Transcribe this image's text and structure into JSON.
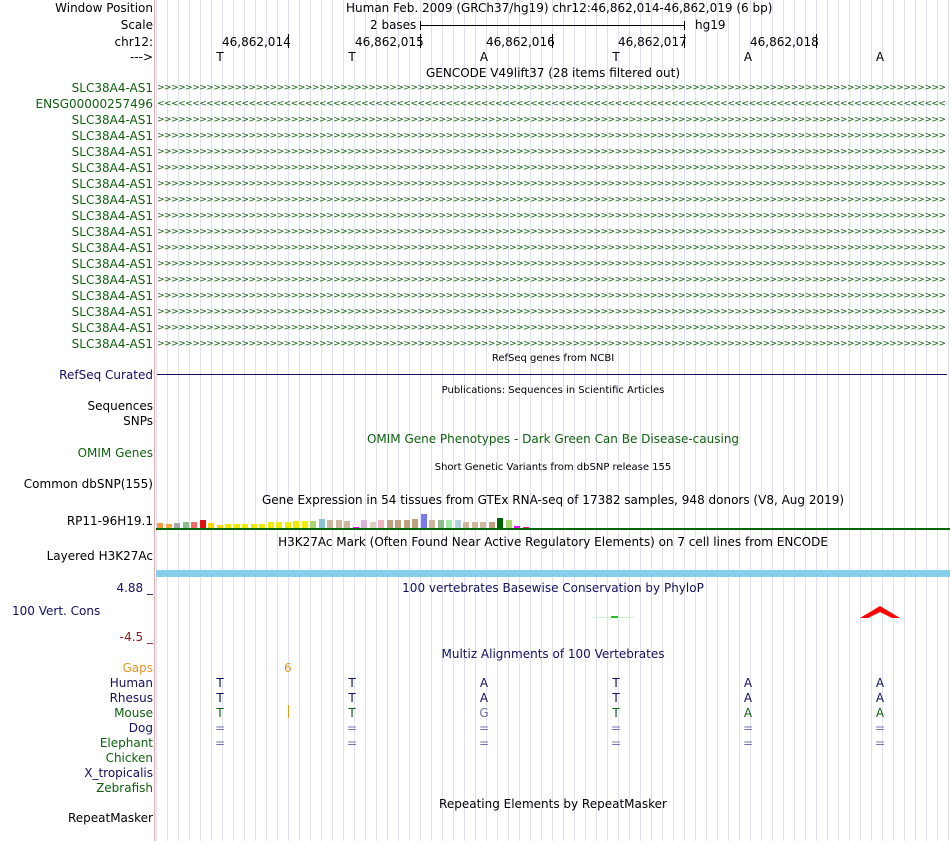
{
  "header": {
    "window_position_label": "Window Position",
    "assembly_text": "Human Feb. 2009 (GRCh37/hg19)   chr12:46,862,014-46,862,019 (6 bp)",
    "scale_label": "Scale",
    "scale_text": "2 bases",
    "scale_db": "hg19",
    "chrom_label": "chr12:",
    "strand_label": "--->",
    "positions": [
      "46,862,014",
      "46,862,015",
      "46,862,016",
      "46,862,017",
      "46,862,018"
    ],
    "bases": [
      "T",
      "T",
      "A",
      "T",
      "A",
      "A"
    ]
  },
  "gencode": {
    "title": "GENCODE V49lift37 (28 items filtered out)",
    "genes": [
      {
        "name": "SLC38A4-AS1",
        "strand": ">",
        "color": "#106010"
      },
      {
        "name": "ENSG00000257496",
        "strand": "<",
        "color": "#106010"
      },
      {
        "name": "SLC38A4-AS1",
        "strand": ">",
        "color": "#106010"
      },
      {
        "name": "SLC38A4-AS1",
        "strand": ">",
        "color": "#106010"
      },
      {
        "name": "SLC38A4-AS1",
        "strand": ">",
        "color": "#106010"
      },
      {
        "name": "SLC38A4-AS1",
        "strand": ">",
        "color": "#106010"
      },
      {
        "name": "SLC38A4-AS1",
        "strand": ">",
        "color": "#106010"
      },
      {
        "name": "SLC38A4-AS1",
        "strand": ">",
        "color": "#106010"
      },
      {
        "name": "SLC38A4-AS1",
        "strand": ">",
        "color": "#106010"
      },
      {
        "name": "SLC38A4-AS1",
        "strand": ">",
        "color": "#106010"
      },
      {
        "name": "SLC38A4-AS1",
        "strand": ">",
        "color": "#106010"
      },
      {
        "name": "SLC38A4-AS1",
        "strand": ">",
        "color": "#106010"
      },
      {
        "name": "SLC38A4-AS1",
        "strand": ">",
        "color": "#106010"
      },
      {
        "name": "SLC38A4-AS1",
        "strand": ">",
        "color": "#106010"
      },
      {
        "name": "SLC38A4-AS1",
        "strand": ">",
        "color": "#106010"
      },
      {
        "name": "SLC38A4-AS1",
        "strand": ">",
        "color": "#106010"
      },
      {
        "name": "SLC38A4-AS1",
        "strand": ">",
        "color": "#106010"
      }
    ]
  },
  "refseq": {
    "title": "RefSeq genes from NCBI",
    "label": "RefSeq Curated"
  },
  "publications": {
    "title": "Publications: Sequences in Scientific Articles",
    "label1": "Sequences",
    "label2": "SNPs"
  },
  "omim": {
    "title": "OMIM Gene Phenotypes - Dark Green Can Be Disease-causing",
    "label": "OMIM Genes"
  },
  "dbsnp": {
    "title": "Short Genetic Variants from dbSNP release 155",
    "label": "Common dbSNP(155)"
  },
  "gtex": {
    "title": "Gene Expression in 54 tissues from GTEx RNA-seq of 17382 samples, 948 donors (V8, Aug 2019)",
    "label": "RP11-96H19.1",
    "bars": [
      {
        "c": "#f79a3e",
        "v": 0.35
      },
      {
        "c": "#f7a93e",
        "v": 0.3
      },
      {
        "c": "#a6a6a6",
        "v": 0.35
      },
      {
        "c": "#8fbc8f",
        "v": 0.45
      },
      {
        "c": "#f56a6a",
        "v": 0.4
      },
      {
        "c": "#dd1111",
        "v": 0.55
      },
      {
        "c": "#ffd700",
        "v": 0.35
      },
      {
        "c": "#ffd700",
        "v": 0.2
      },
      {
        "c": "#eeee00",
        "v": 0.25
      },
      {
        "c": "#eeee00",
        "v": 0.3
      },
      {
        "c": "#eeee00",
        "v": 0.25
      },
      {
        "c": "#eeee00",
        "v": 0.3
      },
      {
        "c": "#eeee00",
        "v": 0.3
      },
      {
        "c": "#eeee00",
        "v": 0.45
      },
      {
        "c": "#eeee00",
        "v": 0.4
      },
      {
        "c": "#eeee00",
        "v": 0.4
      },
      {
        "c": "#eeee00",
        "v": 0.5
      },
      {
        "c": "#eeee00",
        "v": 0.5
      },
      {
        "c": "#a6d96a",
        "v": 0.5
      },
      {
        "c": "#8ac3d2",
        "v": 0.65
      },
      {
        "c": "#cdb79e",
        "v": 0.55
      },
      {
        "c": "#cdb79e",
        "v": 0.55
      },
      {
        "c": "#cdb79e",
        "v": 0.5
      },
      {
        "c": "#ff00ff",
        "v": 0.1
      },
      {
        "c": "#d9b3d9",
        "v": 0.55
      },
      {
        "c": "#e0d0c0",
        "v": 0.4
      },
      {
        "c": "#f5b3c0",
        "v": 0.55
      },
      {
        "c": "#c0a080",
        "v": 0.55
      },
      {
        "c": "#c0a080",
        "v": 0.6
      },
      {
        "c": "#c0a080",
        "v": 0.55
      },
      {
        "c": "#c0a080",
        "v": 0.65
      },
      {
        "c": "#7a7af0",
        "v": 1.0
      },
      {
        "c": "#cdb79e",
        "v": 0.6
      },
      {
        "c": "#8fbc8f",
        "v": 0.55
      },
      {
        "c": "#a6e8a6",
        "v": 0.6
      },
      {
        "c": "#b0d0e0",
        "v": 0.55
      },
      {
        "c": "#cdb79e",
        "v": 0.45
      },
      {
        "c": "#cdb79e",
        "v": 0.45
      },
      {
        "c": "#cdb79e",
        "v": 0.45
      },
      {
        "c": "#c0a080",
        "v": 0.45
      },
      {
        "c": "#006400",
        "v": 0.7
      },
      {
        "c": "#a6d96a",
        "v": 0.55
      },
      {
        "c": "#ff00ff",
        "v": 0.15
      },
      {
        "c": "#ff1493",
        "v": 0.1
      }
    ]
  },
  "h3k27ac": {
    "title": "H3K27Ac Mark (Often Found Near Active Regulatory Elements) on 7 cell lines from ENCODE",
    "label": "Layered H3K27Ac"
  },
  "phylop": {
    "title": "100 vertebrates Basewise Conservation by PhyloP",
    "label": "100 Vert. Cons",
    "max": "4.88 _",
    "min": "-4.5 _"
  },
  "multiz": {
    "title": "Multiz Alignments of 100 Vertebrates",
    "gaps_label": "Gaps",
    "gap_count": "6",
    "species": [
      {
        "name": "Human",
        "color": "#101060",
        "bases": [
          "T",
          "T",
          "A",
          "T",
          "A",
          "A"
        ]
      },
      {
        "name": "Rhesus",
        "color": "#101060",
        "bases": [
          "T",
          "T",
          "A",
          "T",
          "A",
          "A"
        ]
      },
      {
        "name": "Mouse",
        "color": "#106010",
        "bases": [
          "T",
          "T",
          "G",
          "T",
          "A",
          "A"
        ]
      },
      {
        "name": "Dog",
        "color": "#101060",
        "bases": [
          "=",
          "=",
          "=",
          "=",
          "=",
          "="
        ]
      },
      {
        "name": "Elephant",
        "color": "#106010",
        "bases": [
          "=",
          "=",
          "=",
          "=",
          "=",
          "="
        ]
      },
      {
        "name": "Chicken",
        "color": "#106010",
        "bases": []
      },
      {
        "name": "X_tropicalis",
        "color": "#101060",
        "bases": []
      },
      {
        "name": "Zebrafish",
        "color": "#106010",
        "bases": []
      }
    ]
  },
  "repeatmasker": {
    "title": "Repeating Elements by RepeatMasker",
    "label": "RepeatMasker"
  }
}
